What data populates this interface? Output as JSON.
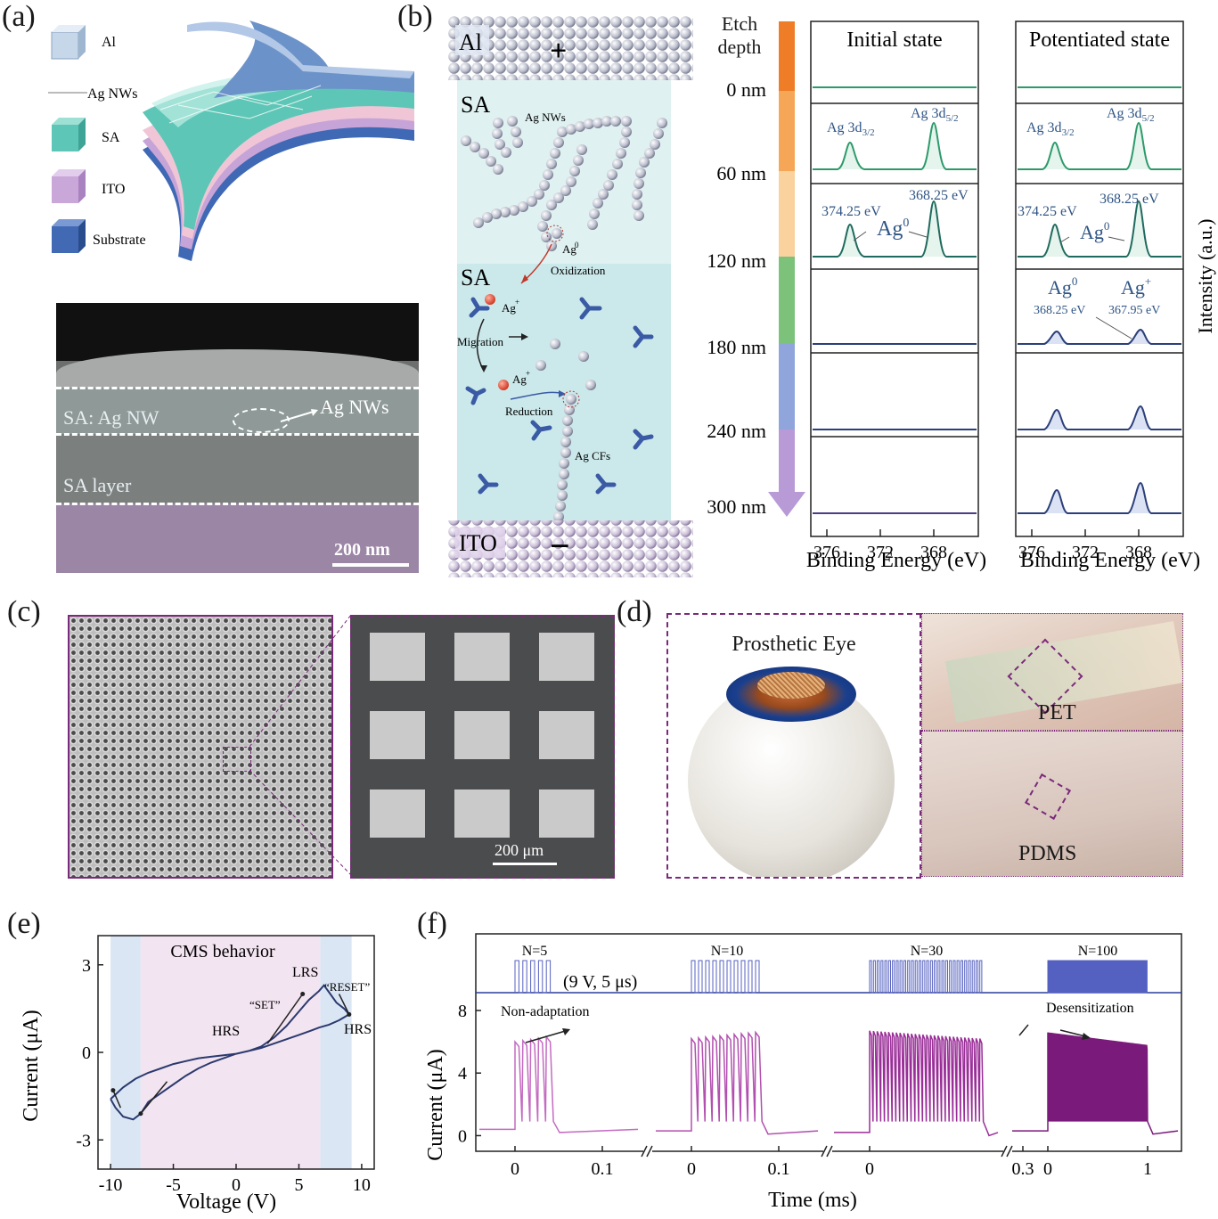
{
  "panels": {
    "a": {
      "label": "(a)",
      "legend": [
        "Al",
        "Ag NWs",
        "SA",
        "ITO",
        "Substrate"
      ],
      "legend_colors": [
        "#b9cde3",
        "#c9c9c9",
        "#5cc5b5",
        "#c9a6d9",
        "#3f68b5"
      ],
      "sem": {
        "layer1": "SA: Ag NW",
        "layer2": "SA layer",
        "callout": "Ag NWs",
        "scale": "200 nm"
      }
    },
    "b": {
      "label": "(b)",
      "schematic": {
        "top": "Al",
        "top_sign": "+",
        "region1": "SA",
        "nw_label": "Ag NWs",
        "ag0": "Ag",
        "oxidization": "Oxidization",
        "region2": "SA",
        "agplus1": "Ag",
        "migration": "Migration",
        "agplus2": "Ag",
        "reduction": "Reduction",
        "cfs": "Ag CFs",
        "bottom": "ITO",
        "bottom_sign": "−"
      },
      "etch": {
        "title_line1": "Etch",
        "title_line2": "depth",
        "depths": [
          "0 nm",
          "60 nm",
          "120 nm",
          "180 nm",
          "240 nm",
          "300 nm"
        ],
        "colors": [
          "#ef7d27",
          "#f5a657",
          "#f9d29d",
          "#7cc27a",
          "#8fa5dc",
          "#b79ad6"
        ]
      },
      "xps": {
        "col1_title": "Initial state",
        "col2_title": "Potentiated state",
        "xlabel": "Binding Energy (eV)",
        "ylabel": "Intensity (a.u.)",
        "xticks": [
          "376",
          "372",
          "368"
        ],
        "peak_labels": {
          "ag3d32": "Ag 3d",
          "ag3d32_sub": "3/2",
          "ag3d52": "Ag 3d",
          "ag3d52_sub": "5/2",
          "e374": "374.25 eV",
          "e368": "368.25 eV",
          "ag0": "Ag",
          "agplus": "Ag",
          "e36825": "368.25 eV",
          "e36795": "367.95 eV"
        }
      }
    },
    "c": {
      "label": "(c)",
      "scale": "200 μm"
    },
    "d": {
      "label": "(d)",
      "eye_title": "Prosthetic Eye",
      "pet": "PET",
      "pdms": "PDMS"
    },
    "e": {
      "label": "(e)",
      "behavior": "CMS behavior",
      "lrs": "LRS",
      "set": "“SET”",
      "reset": "“RESET”",
      "hrs_left": "HRS",
      "hrs_right": "HRS"
    },
    "f": {
      "label": "(f)",
      "pulse_note": "(9 V, 5 μs)",
      "nonadapt": "Non-adaptation",
      "desens": "Desensitization",
      "groups": [
        "N=5",
        "N=10",
        "N=30",
        "N=100"
      ]
    }
  },
  "chart_data": [
    {
      "type": "line",
      "id": "e",
      "title": "",
      "xlabel": "Voltage  (V)",
      "ylabel": "Current  (μA)",
      "xlim": [
        -11,
        11
      ],
      "ylim": [
        -4,
        4
      ],
      "xticks": [
        -10,
        -5,
        0,
        5,
        10
      ],
      "yticks": [
        -3,
        0,
        3
      ],
      "shaded": [
        {
          "x": [
            -10,
            -7.6
          ],
          "color": "#dbe6f5"
        },
        {
          "x": [
            -7.6,
            6.7
          ],
          "color": "#f3e4f1"
        },
        {
          "x": [
            6.7,
            9.2
          ],
          "color": "#dbe6f5"
        }
      ],
      "series": [
        {
          "x": [
            -10,
            -9,
            -8,
            -7,
            -6,
            -5,
            -4,
            -3,
            -2,
            -1,
            0,
            1,
            2,
            3,
            4,
            5,
            5.8,
            6.6,
            7,
            7.5,
            8,
            8.6,
            9,
            8.2,
            7.4,
            6.6,
            6,
            5,
            4,
            3,
            2,
            1,
            0,
            -1,
            -2,
            -3,
            -4,
            -5,
            -6,
            -7,
            -7.6,
            -8.2,
            -9,
            -9.6,
            -10
          ],
          "y": [
            -1.6,
            -1.2,
            -0.9,
            -0.7,
            -0.55,
            -0.4,
            -0.3,
            -0.2,
            -0.15,
            -0.1,
            -0.05,
            0.05,
            0.2,
            0.5,
            0.9,
            1.4,
            1.8,
            2.1,
            2.3,
            2.0,
            1.7,
            1.5,
            1.3,
            1.1,
            0.95,
            0.85,
            0.75,
            0.6,
            0.45,
            0.3,
            0.15,
            0.05,
            -0.05,
            -0.2,
            -0.35,
            -0.55,
            -0.8,
            -1.1,
            -1.4,
            -1.7,
            -2.1,
            -2.3,
            -2.2,
            -1.9,
            -1.6
          ]
        }
      ]
    },
    {
      "type": "line",
      "id": "f",
      "title": "",
      "xlabel": "Time (ms)",
      "ylabel": "Current (μA)",
      "ylim": [
        -1,
        8
      ],
      "yticks": [
        0,
        4,
        8
      ],
      "groups": [
        {
          "n": 5,
          "xlim": [
            0,
            0.15
          ],
          "xticks": [
            "0",
            "0.1"
          ],
          "peak_start": 6.0,
          "peak_end": 6.3,
          "baseline": 0.4
        },
        {
          "n": 10,
          "xlim": [
            0,
            0.15
          ],
          "xticks": [
            "0",
            "0.1"
          ],
          "peak_start": 6.2,
          "peak_end": 6.6,
          "baseline": 0.3
        },
        {
          "n": 30,
          "xlim": [
            0,
            0.35
          ],
          "xticks": [
            "0",
            "0.3"
          ],
          "peak_start": 6.7,
          "peak_end": 6.2,
          "baseline": 0.2
        },
        {
          "n": 100,
          "xlim": [
            0,
            1.5
          ],
          "xticks": [
            "0",
            "1"
          ],
          "peak_start": 6.6,
          "peak_end": 5.8,
          "baseline": 0.3
        }
      ]
    }
  ]
}
